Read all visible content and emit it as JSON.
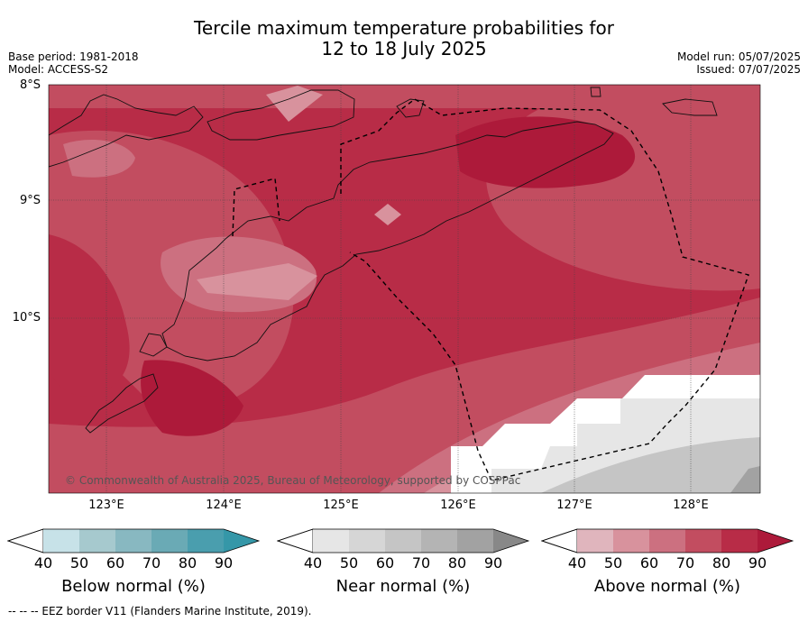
{
  "title_line1": "Tercile maximum temperature probabilities for",
  "title_line2": "12 to 18 July 2025",
  "base_period": "Base period: 1981-2018",
  "model": "Model: ACCESS-S2",
  "model_run": "Model run: 05/07/2025",
  "issued": "Issued: 07/07/2025",
  "lat_labels": [
    "8°S",
    "9°S",
    "10°S"
  ],
  "lon_labels": [
    "123°E",
    "124°E",
    "125°E",
    "126°E",
    "127°E",
    "128°E"
  ],
  "copyright": "© Commonwealth of Australia 2025, Bureau of Meteorology, supported by COSPPac",
  "legends": {
    "below": {
      "label": "Below normal (%)",
      "ticks": [
        "40",
        "50",
        "60",
        "70",
        "80",
        "90"
      ],
      "colors": [
        "#c7e2e8",
        "#a6c9ce",
        "#88b8c1",
        "#6aaab5",
        "#4a9eae",
        "#3597a8"
      ]
    },
    "near": {
      "label": "Near normal (%)",
      "ticks": [
        "40",
        "50",
        "60",
        "70",
        "80",
        "90"
      ],
      "colors": [
        "#e6e6e6",
        "#d6d6d6",
        "#c5c5c5",
        "#b4b4b4",
        "#a2a2a2",
        "#888888"
      ]
    },
    "above": {
      "label": "Above normal (%)",
      "ticks": [
        "40",
        "50",
        "60",
        "70",
        "80",
        "90"
      ],
      "colors": [
        "#e0b5bd",
        "#d8929d",
        "#cc7080",
        "#c24d60",
        "#b82c47",
        "#ad1a3a"
      ]
    }
  },
  "footer": "--  --  -- EEZ border V11 (Flanders Marine Institute, 2019)."
}
